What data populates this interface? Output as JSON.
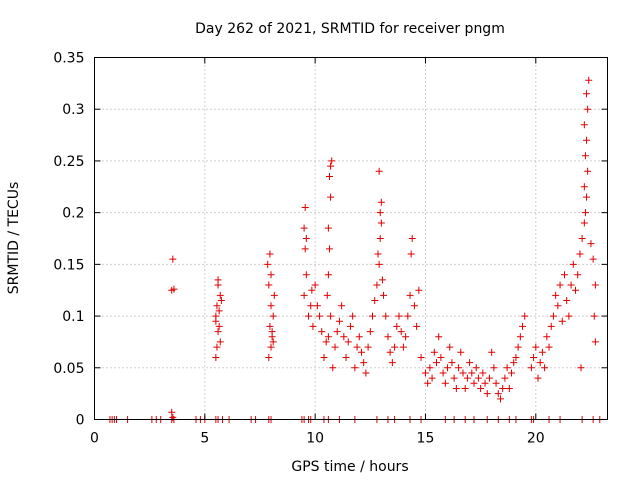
{
  "chart_data": {
    "type": "scatter",
    "title": "Day 262 of 2021, SRMTID for receiver pngm",
    "xlabel": "GPS time / hours",
    "ylabel": "SRMTID / TECUs",
    "xlim": [
      0,
      23.25
    ],
    "ylim": [
      0,
      0.35
    ],
    "xticks": [
      0,
      5,
      10,
      15,
      20
    ],
    "xtick_labels": [
      "0",
      "5",
      "10",
      "15",
      "20"
    ],
    "yticks": [
      0,
      0.05,
      0.1,
      0.15,
      0.2,
      0.25,
      0.3,
      0.35
    ],
    "ytick_labels": [
      "0",
      "0.05",
      "0.1",
      "0.15",
      "0.2",
      "0.25",
      "0.3",
      "0.35"
    ],
    "grid": true,
    "marker": "+",
    "color": "#e00000",
    "series": [
      {
        "name": "SRMTID",
        "points": [
          [
            0.7,
            0
          ],
          [
            0.8,
            0
          ],
          [
            0.9,
            0
          ],
          [
            1.0,
            0
          ],
          [
            1.5,
            0
          ],
          [
            2.6,
            0
          ],
          [
            2.8,
            0
          ],
          [
            3.0,
            0
          ],
          [
            3.5,
            0
          ],
          [
            3.6,
            0
          ],
          [
            4.6,
            0
          ],
          [
            4.8,
            0
          ],
          [
            5.0,
            0
          ],
          [
            5.5,
            0
          ],
          [
            5.6,
            0
          ],
          [
            5.8,
            0
          ],
          [
            6.1,
            0
          ],
          [
            7.1,
            0
          ],
          [
            7.3,
            0
          ],
          [
            7.9,
            0
          ],
          [
            8.0,
            0
          ],
          [
            9.4,
            0
          ],
          [
            9.5,
            0
          ],
          [
            9.7,
            0
          ],
          [
            9.8,
            0
          ],
          [
            10.4,
            0
          ],
          [
            10.6,
            0
          ],
          [
            11.1,
            0
          ],
          [
            11.8,
            0
          ],
          [
            12.8,
            0
          ],
          [
            13.3,
            0
          ],
          [
            13.6,
            0
          ],
          [
            14.3,
            0
          ],
          [
            14.8,
            0
          ],
          [
            15.9,
            0
          ],
          [
            16.3,
            0
          ],
          [
            16.8,
            0
          ],
          [
            17.2,
            0
          ],
          [
            17.8,
            0
          ],
          [
            18.3,
            0
          ],
          [
            18.8,
            0
          ],
          [
            19.1,
            0
          ],
          [
            19.8,
            0
          ],
          [
            19.9,
            0
          ],
          [
            20.6,
            0
          ],
          [
            21.1,
            0
          ],
          [
            22.1,
            0
          ],
          [
            22.6,
            0
          ],
          [
            22.9,
            0
          ],
          [
            3.5,
            0.007
          ],
          [
            3.55,
            0.002
          ],
          [
            3.5,
            0.125
          ],
          [
            3.6,
            0.126
          ],
          [
            3.55,
            0.155
          ],
          [
            5.5,
            0.06
          ],
          [
            5.55,
            0.07
          ],
          [
            5.6,
            0.085
          ],
          [
            5.5,
            0.095
          ],
          [
            5.65,
            0.105
          ],
          [
            5.55,
            0.11
          ],
          [
            5.7,
            0.12
          ],
          [
            5.6,
            0.13
          ],
          [
            5.75,
            0.115
          ],
          [
            5.5,
            0.1
          ],
          [
            5.65,
            0.09
          ],
          [
            5.7,
            0.075
          ],
          [
            5.6,
            0.135
          ],
          [
            7.9,
            0.06
          ],
          [
            8.0,
            0.07
          ],
          [
            8.05,
            0.08
          ],
          [
            7.95,
            0.09
          ],
          [
            8.1,
            0.1
          ],
          [
            8.0,
            0.11
          ],
          [
            8.15,
            0.12
          ],
          [
            7.9,
            0.13
          ],
          [
            8.0,
            0.14
          ],
          [
            7.85,
            0.15
          ],
          [
            7.95,
            0.16
          ],
          [
            8.1,
            0.075
          ],
          [
            8.05,
            0.085
          ],
          [
            9.5,
            0.12
          ],
          [
            9.6,
            0.14
          ],
          [
            9.55,
            0.165
          ],
          [
            9.6,
            0.175
          ],
          [
            9.5,
            0.185
          ],
          [
            9.55,
            0.205
          ],
          [
            9.7,
            0.1
          ],
          [
            9.8,
            0.11
          ],
          [
            9.9,
            0.09
          ],
          [
            9.85,
            0.125
          ],
          [
            10.0,
            0.13
          ],
          [
            10.1,
            0.11
          ],
          [
            10.2,
            0.1
          ],
          [
            10.3,
            0.085
          ],
          [
            10.4,
            0.06
          ],
          [
            10.5,
            0.075
          ],
          [
            10.6,
            0.08
          ],
          [
            10.7,
            0.1
          ],
          [
            10.55,
            0.12
          ],
          [
            10.6,
            0.14
          ],
          [
            10.65,
            0.165
          ],
          [
            10.6,
            0.185
          ],
          [
            10.7,
            0.215
          ],
          [
            10.65,
            0.235
          ],
          [
            10.7,
            0.245
          ],
          [
            10.75,
            0.25
          ],
          [
            10.8,
            0.05
          ],
          [
            10.9,
            0.07
          ],
          [
            11.0,
            0.085
          ],
          [
            11.1,
            0.095
          ],
          [
            11.2,
            0.11
          ],
          [
            11.3,
            0.08
          ],
          [
            11.4,
            0.06
          ],
          [
            11.5,
            0.075
          ],
          [
            11.6,
            0.09
          ],
          [
            11.7,
            0.1
          ],
          [
            11.8,
            0.05
          ],
          [
            11.9,
            0.07
          ],
          [
            12.0,
            0.08
          ],
          [
            12.1,
            0.065
          ],
          [
            12.2,
            0.055
          ],
          [
            12.3,
            0.045
          ],
          [
            12.4,
            0.07
          ],
          [
            12.5,
            0.085
          ],
          [
            12.6,
            0.1
          ],
          [
            12.7,
            0.115
          ],
          [
            12.8,
            0.13
          ],
          [
            12.9,
            0.15
          ],
          [
            12.85,
            0.16
          ],
          [
            12.95,
            0.175
          ],
          [
            13.0,
            0.19
          ],
          [
            12.95,
            0.2
          ],
          [
            13.0,
            0.21
          ],
          [
            12.9,
            0.24
          ],
          [
            13.05,
            0.135
          ],
          [
            13.1,
            0.12
          ],
          [
            13.2,
            0.1
          ],
          [
            13.3,
            0.08
          ],
          [
            13.4,
            0.065
          ],
          [
            13.5,
            0.055
          ],
          [
            13.6,
            0.07
          ],
          [
            13.7,
            0.09
          ],
          [
            13.8,
            0.1
          ],
          [
            13.9,
            0.085
          ],
          [
            14.0,
            0.07
          ],
          [
            14.1,
            0.08
          ],
          [
            14.2,
            0.1
          ],
          [
            14.3,
            0.12
          ],
          [
            14.35,
            0.16
          ],
          [
            14.4,
            0.175
          ],
          [
            14.5,
            0.11
          ],
          [
            14.6,
            0.09
          ],
          [
            14.7,
            0.125
          ],
          [
            14.8,
            0.06
          ],
          [
            15.0,
            0.045
          ],
          [
            15.1,
            0.035
          ],
          [
            15.2,
            0.05
          ],
          [
            15.3,
            0.04
          ],
          [
            15.4,
            0.065
          ],
          [
            15.5,
            0.055
          ],
          [
            15.6,
            0.08
          ],
          [
            15.7,
            0.06
          ],
          [
            15.8,
            0.045
          ],
          [
            15.9,
            0.035
          ],
          [
            16.0,
            0.05
          ],
          [
            16.1,
            0.07
          ],
          [
            16.2,
            0.055
          ],
          [
            16.3,
            0.04
          ],
          [
            16.4,
            0.03
          ],
          [
            16.5,
            0.05
          ],
          [
            16.6,
            0.065
          ],
          [
            16.7,
            0.045
          ],
          [
            16.8,
            0.03
          ],
          [
            16.9,
            0.04
          ],
          [
            17.0,
            0.055
          ],
          [
            17.1,
            0.045
          ],
          [
            17.2,
            0.035
          ],
          [
            17.3,
            0.05
          ],
          [
            17.4,
            0.04
          ],
          [
            17.5,
            0.03
          ],
          [
            17.6,
            0.045
          ],
          [
            17.7,
            0.035
          ],
          [
            17.8,
            0.025
          ],
          [
            17.9,
            0.04
          ],
          [
            18.0,
            0.065
          ],
          [
            18.1,
            0.05
          ],
          [
            18.2,
            0.035
          ],
          [
            18.3,
            0.025
          ],
          [
            18.4,
            0.02
          ],
          [
            18.5,
            0.03
          ],
          [
            18.6,
            0.04
          ],
          [
            18.7,
            0.05
          ],
          [
            18.8,
            0.03
          ],
          [
            18.9,
            0.045
          ],
          [
            19.0,
            0.055
          ],
          [
            19.1,
            0.06
          ],
          [
            19.2,
            0.07
          ],
          [
            19.3,
            0.08
          ],
          [
            19.4,
            0.09
          ],
          [
            19.5,
            0.1
          ],
          [
            19.8,
            0.05
          ],
          [
            19.9,
            0.06
          ],
          [
            20.0,
            0.07
          ],
          [
            20.1,
            0.04
          ],
          [
            20.2,
            0.055
          ],
          [
            20.3,
            0.065
          ],
          [
            20.4,
            0.05
          ],
          [
            20.5,
            0.08
          ],
          [
            20.6,
            0.07
          ],
          [
            20.7,
            0.09
          ],
          [
            20.8,
            0.1
          ],
          [
            20.9,
            0.12
          ],
          [
            21.0,
            0.11
          ],
          [
            21.1,
            0.13
          ],
          [
            21.2,
            0.095
          ],
          [
            21.3,
            0.14
          ],
          [
            21.4,
            0.115
          ],
          [
            21.5,
            0.1
          ],
          [
            21.6,
            0.13
          ],
          [
            21.7,
            0.15
          ],
          [
            21.8,
            0.125
          ],
          [
            21.9,
            0.14
          ],
          [
            22.0,
            0.16
          ],
          [
            22.05,
            0.05
          ],
          [
            22.1,
            0.175
          ],
          [
            22.2,
            0.19
          ],
          [
            22.25,
            0.2
          ],
          [
            22.3,
            0.215
          ],
          [
            22.2,
            0.225
          ],
          [
            22.35,
            0.24
          ],
          [
            22.25,
            0.255
          ],
          [
            22.3,
            0.27
          ],
          [
            22.2,
            0.285
          ],
          [
            22.35,
            0.3
          ],
          [
            22.3,
            0.315
          ],
          [
            22.4,
            0.328
          ],
          [
            22.5,
            0.17
          ],
          [
            22.6,
            0.155
          ],
          [
            22.7,
            0.13
          ],
          [
            22.65,
            0.1
          ],
          [
            22.7,
            0.075
          ]
        ]
      }
    ]
  }
}
